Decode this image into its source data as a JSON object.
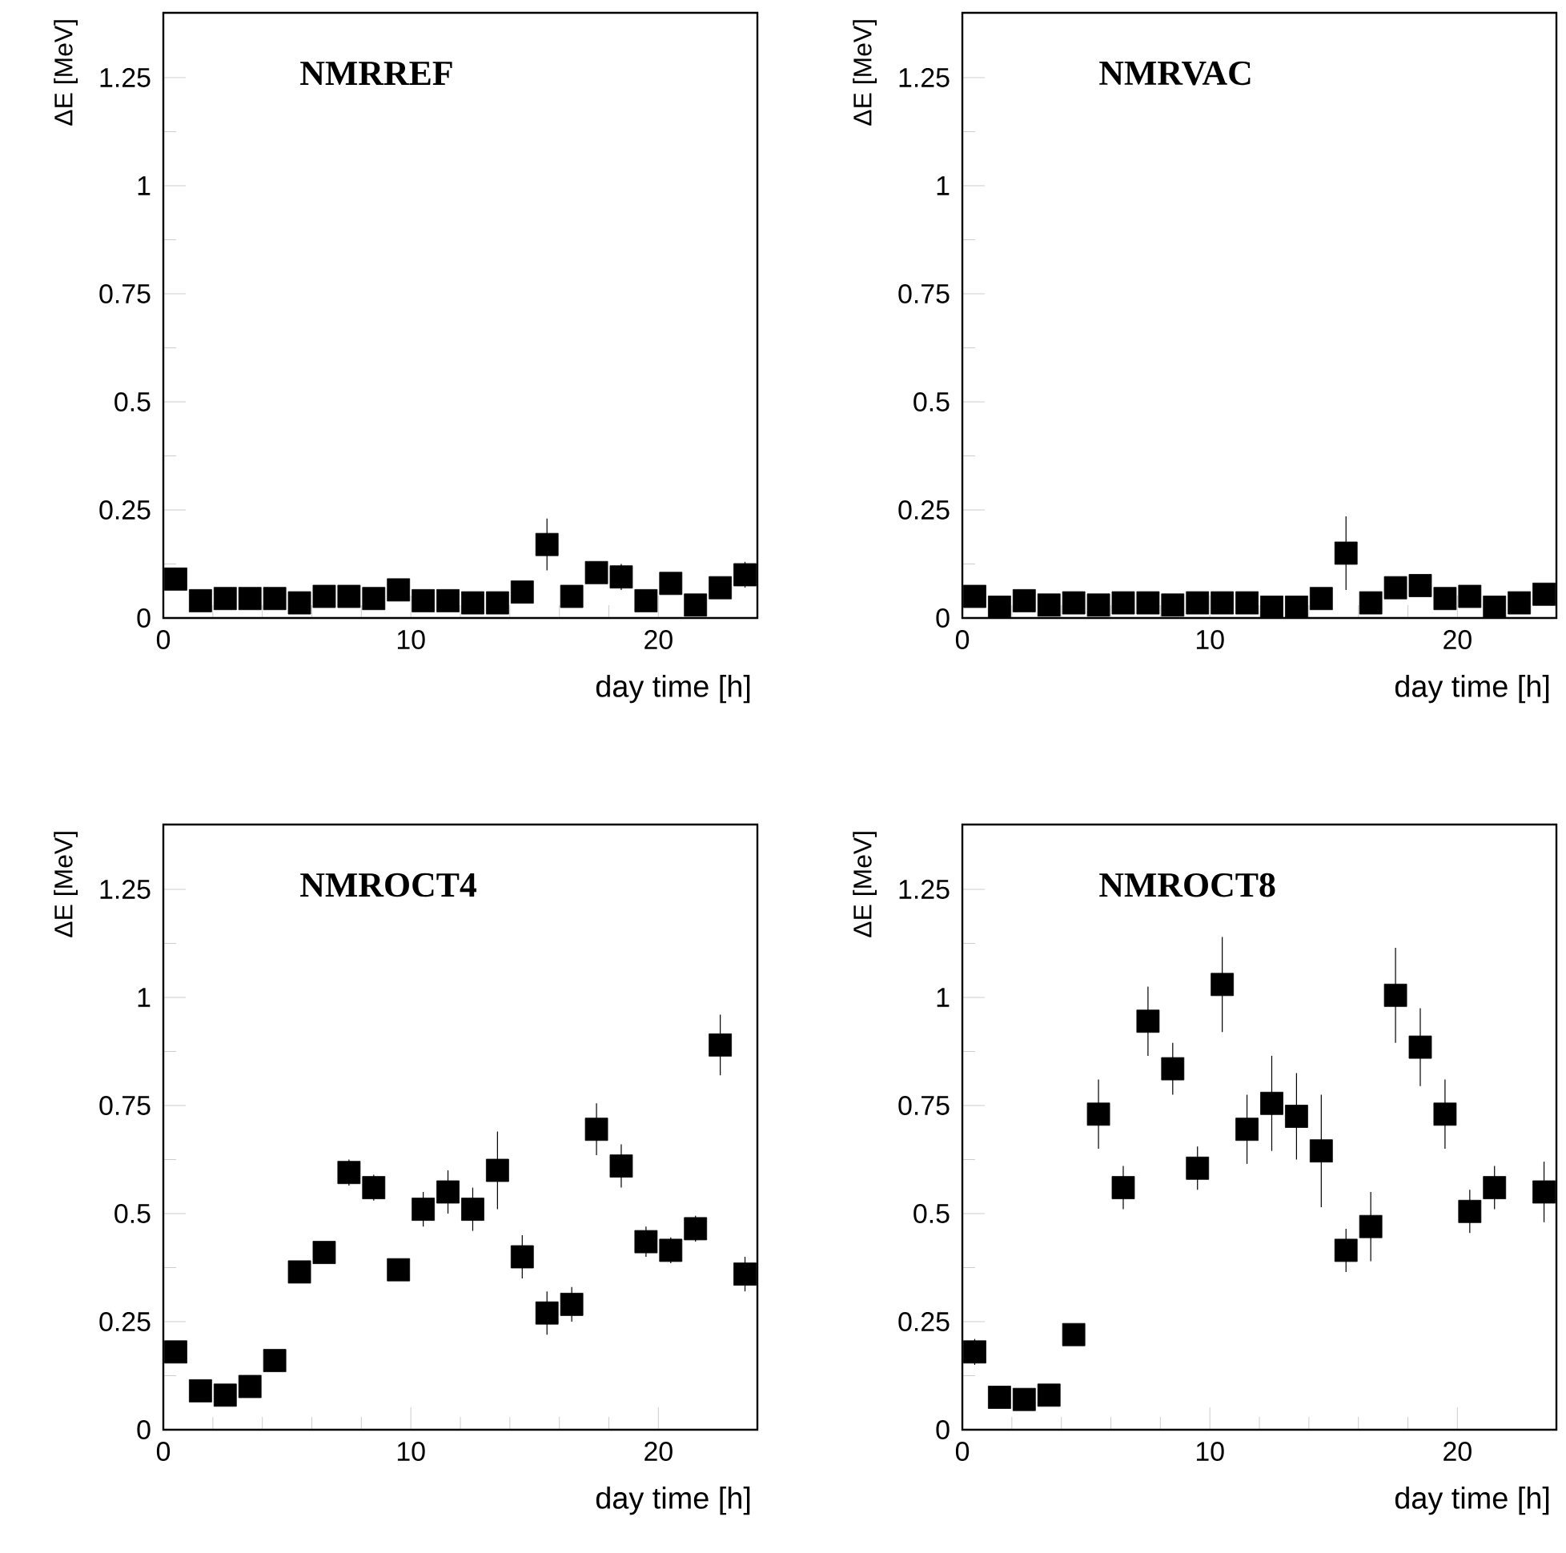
{
  "chart_data": [
    {
      "type": "scatter",
      "title": "NMRREF",
      "xlabel": "day time [h]",
      "ylabel": "ΔE [MeV]",
      "color": "#000000",
      "marker": "square",
      "x": [
        0.5,
        1.5,
        2.5,
        3.5,
        4.5,
        5.5,
        6.5,
        7.5,
        8.5,
        9.5,
        10.5,
        11.5,
        12.5,
        13.5,
        14.5,
        15.5,
        16.5,
        17.5,
        18.5,
        19.5,
        20.5,
        21.5,
        22.5,
        23.5
      ],
      "values": [
        0.09,
        0.04,
        0.045,
        0.045,
        0.045,
        0.035,
        0.05,
        0.05,
        0.045,
        0.065,
        0.04,
        0.04,
        0.035,
        0.035,
        0.06,
        0.17,
        0.05,
        0.105,
        0.095,
        0.04,
        0.08,
        0.03,
        0.07,
        0.1
      ],
      "errors": [
        0.02,
        0.01,
        0.01,
        0.01,
        0.01,
        0.01,
        0.01,
        0.01,
        0.01,
        0.01,
        0.01,
        0.01,
        0.01,
        0.01,
        0.01,
        0.06,
        0.01,
        0.02,
        0.03,
        0.01,
        0.02,
        0.01,
        0.01,
        0.03
      ],
      "xlim": [
        0,
        24
      ],
      "xticks": [
        0,
        10,
        20
      ],
      "ylim": [
        0,
        1.4
      ],
      "yticks": [
        0,
        0.25,
        0.5,
        0.75,
        1,
        1.25
      ]
    },
    {
      "type": "scatter",
      "title": "NMRVAC",
      "xlabel": "day time [h]",
      "ylabel": "ΔE [MeV]",
      "color": "#000000",
      "marker": "square",
      "x": [
        0.5,
        1.5,
        2.5,
        3.5,
        4.5,
        5.5,
        6.5,
        7.5,
        8.5,
        9.5,
        10.5,
        11.5,
        12.5,
        13.5,
        14.5,
        15.5,
        16.5,
        17.5,
        18.5,
        19.5,
        20.5,
        21.5,
        22.5,
        23.5
      ],
      "values": [
        0.05,
        0.025,
        0.04,
        0.03,
        0.035,
        0.03,
        0.035,
        0.035,
        0.03,
        0.035,
        0.035,
        0.035,
        0.025,
        0.025,
        0.045,
        0.15,
        0.035,
        0.07,
        0.075,
        0.045,
        0.05,
        0.025,
        0.035,
        0.055
      ],
      "errors": [
        0.01,
        0.01,
        0.01,
        0.01,
        0.01,
        0.01,
        0.01,
        0.01,
        0.01,
        0.01,
        0.01,
        0.01,
        0.01,
        0.01,
        0.01,
        0.085,
        0.01,
        0.01,
        0.015,
        0.01,
        0.01,
        0.01,
        0.01,
        0.01
      ],
      "xlim": [
        0,
        24
      ],
      "xticks": [
        0,
        10,
        20
      ],
      "ylim": [
        0,
        1.4
      ],
      "yticks": [
        0,
        0.25,
        0.5,
        0.75,
        1,
        1.25
      ]
    },
    {
      "type": "scatter",
      "title": "NMROCT4",
      "xlabel": "day time [h]",
      "ylabel": "ΔE [MeV]",
      "color": "#000000",
      "marker": "square",
      "x": [
        0.5,
        1.5,
        2.5,
        3.5,
        4.5,
        5.5,
        6.5,
        7.5,
        8.5,
        9.5,
        10.5,
        11.5,
        12.5,
        13.5,
        14.5,
        15.5,
        16.5,
        17.5,
        18.5,
        19.5,
        20.5,
        21.5,
        22.5,
        23.5
      ],
      "values": [
        0.18,
        0.09,
        0.08,
        0.1,
        0.16,
        0.365,
        0.41,
        0.595,
        0.56,
        0.37,
        0.51,
        0.55,
        0.51,
        0.6,
        0.4,
        0.27,
        0.29,
        0.695,
        0.61,
        0.435,
        0.415,
        0.465,
        0.89,
        0.36
      ],
      "errors": [
        0.02,
        0.01,
        0.01,
        0.01,
        0.01,
        0.02,
        0.025,
        0.03,
        0.03,
        0.01,
        0.04,
        0.05,
        0.05,
        0.09,
        0.05,
        0.05,
        0.04,
        0.06,
        0.05,
        0.035,
        0.03,
        0.03,
        0.07,
        0.04
      ],
      "xlim": [
        0,
        24
      ],
      "xticks": [
        0,
        10,
        20
      ],
      "ylim": [
        0,
        1.4
      ],
      "yticks": [
        0,
        0.25,
        0.5,
        0.75,
        1,
        1.25
      ]
    },
    {
      "type": "scatter",
      "title": "NMROCT8",
      "xlabel": "day time [h]",
      "ylabel": "ΔE [MeV]",
      "color": "#000000",
      "marker": "square",
      "x": [
        0.5,
        1.5,
        2.5,
        3.5,
        4.5,
        5.5,
        6.5,
        7.5,
        8.5,
        9.5,
        10.5,
        11.5,
        12.5,
        13.5,
        14.5,
        15.5,
        16.5,
        17.5,
        18.5,
        19.5,
        20.5,
        21.5,
        22.5,
        23.5
      ],
      "values": [
        0.18,
        0.075,
        0.07,
        0.08,
        0.22,
        0.73,
        0.56,
        0.945,
        0.835,
        0.605,
        1.03,
        0.695,
        0.755,
        0.725,
        0.645,
        0.415,
        0.47,
        1.005,
        0.885,
        0.73,
        0.505,
        0.56,
        null,
        0.55
      ],
      "errors": [
        0.03,
        0.01,
        0.01,
        0.01,
        0.01,
        0.08,
        0.05,
        0.08,
        0.06,
        0.05,
        0.11,
        0.08,
        0.11,
        0.1,
        0.13,
        0.05,
        0.08,
        0.11,
        0.09,
        0.08,
        0.05,
        0.05,
        null,
        0.07
      ],
      "xlim": [
        0,
        24
      ],
      "xticks": [
        0,
        10,
        20
      ],
      "ylim": [
        0,
        1.4
      ],
      "yticks": [
        0,
        0.25,
        0.5,
        0.75,
        1,
        1.25
      ]
    }
  ]
}
